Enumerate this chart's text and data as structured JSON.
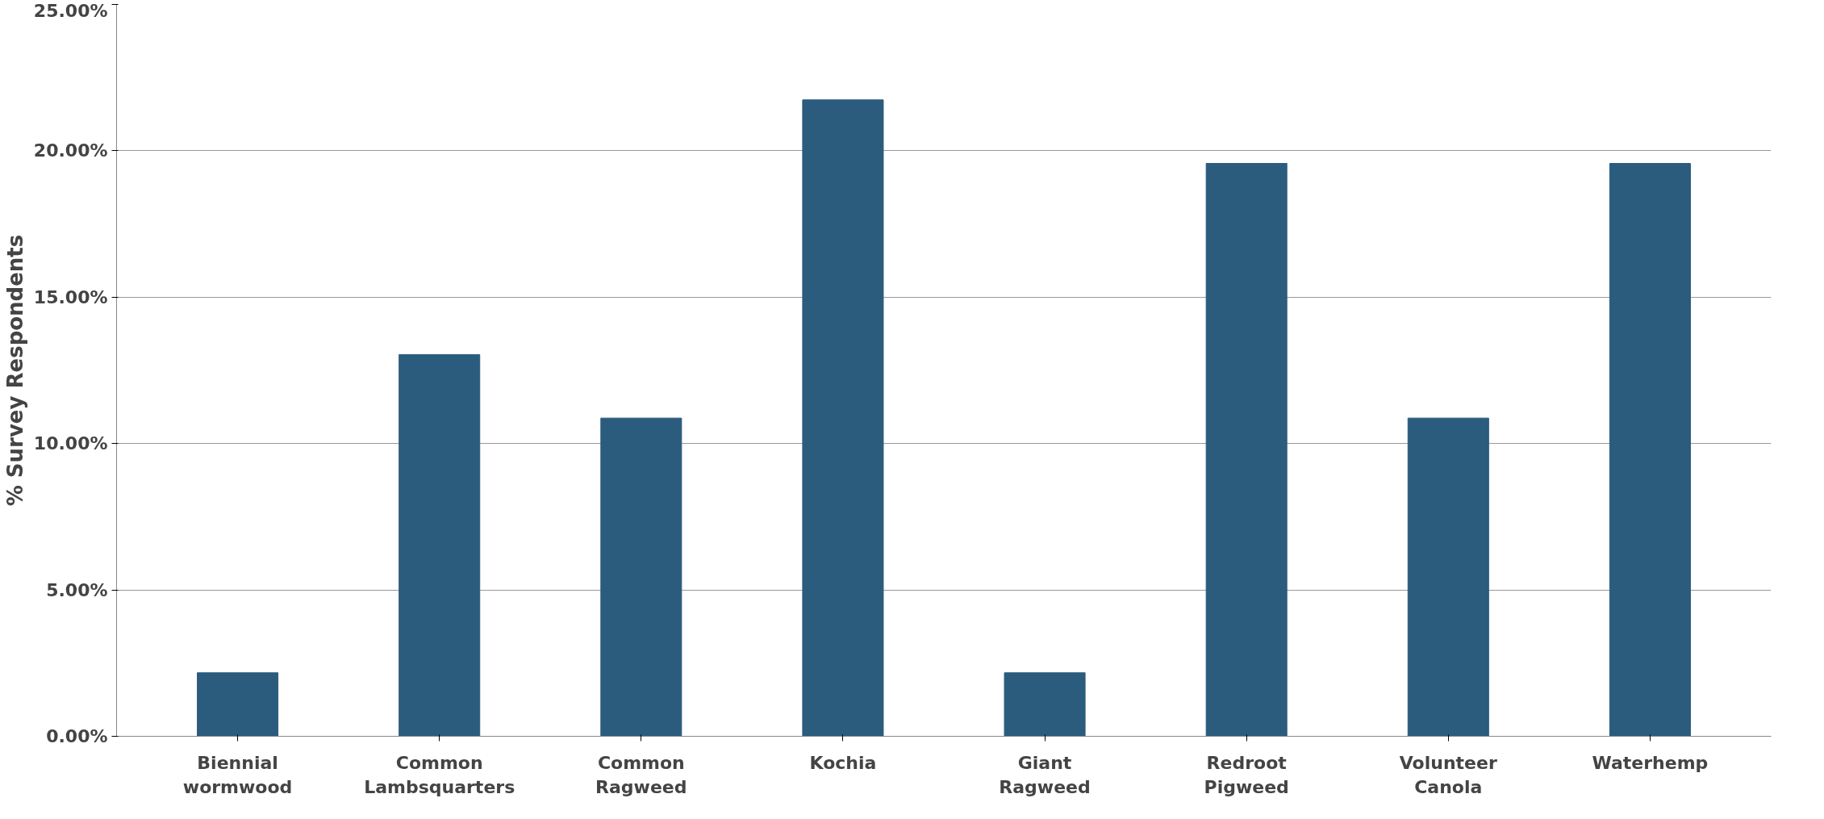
{
  "chart_data": {
    "type": "bar",
    "ylabel": "% Survey Respondents",
    "categories": [
      "Biennial\nwormwood",
      "Common\nLambsquarters",
      "Common\nRagweed",
      "Kochia",
      "Giant\nRagweed",
      "Redroot\nPigweed",
      "Volunteer\nCanola",
      "Waterhemp"
    ],
    "values": [
      2.17,
      13.04,
      10.87,
      21.74,
      2.17,
      19.57,
      10.87,
      19.57
    ],
    "color": "#2b5c7e",
    "ylim": [
      0,
      25
    ],
    "yticks": [
      {
        "value": 0,
        "label": "0.00%"
      },
      {
        "value": 5,
        "label": "5.00%"
      },
      {
        "value": 10,
        "label": "10.00%"
      },
      {
        "value": 15,
        "label": "15.00%"
      },
      {
        "value": 20,
        "label": "20.00%"
      },
      {
        "value": 25,
        "label": "25.00%"
      }
    ],
    "grid": "y"
  }
}
